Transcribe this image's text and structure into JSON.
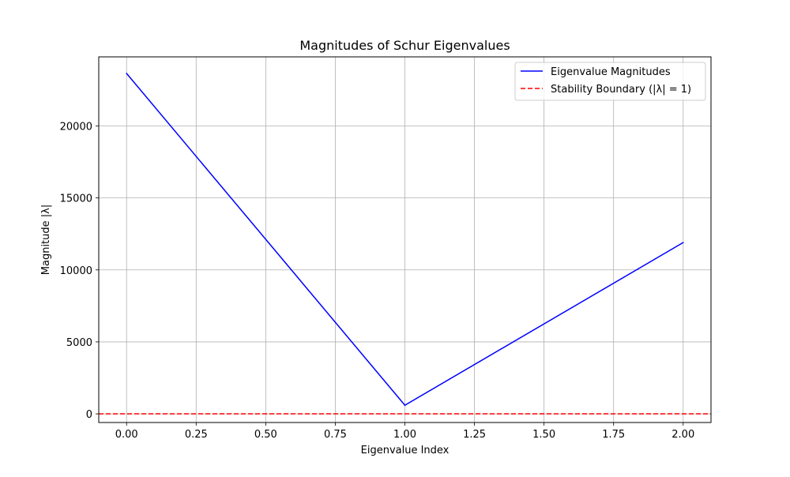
{
  "chart_data": {
    "type": "line",
    "title": "Magnitudes of Schur Eigenvalues",
    "xlabel": "Eigenvalue Index",
    "ylabel": "Magnitude |λ|",
    "xlim": [
      -0.1,
      2.1
    ],
    "ylim": [
      -600,
      24800
    ],
    "x_ticks": [
      0,
      0.25,
      0.5,
      0.75,
      1.0,
      1.25,
      1.5,
      1.75,
      2.0
    ],
    "x_tick_labels": [
      "0.00",
      "0.25",
      "0.50",
      "0.75",
      "1.00",
      "1.25",
      "1.50",
      "1.75",
      "2.00"
    ],
    "y_ticks": [
      0,
      5000,
      10000,
      15000,
      20000
    ],
    "y_tick_labels": [
      "0",
      "5000",
      "10000",
      "15000",
      "20000"
    ],
    "grid": true,
    "legend_position": "top-right",
    "series": [
      {
        "name": "Eigenvalue Magnitudes",
        "x": [
          0,
          1,
          2
        ],
        "values": [
          23650,
          600,
          11900
        ],
        "color": "#0000ff",
        "style": "solid"
      }
    ],
    "reference_lines": [
      {
        "name": "Stability Boundary (|λ| = 1)",
        "y": 1,
        "color": "#ff0000",
        "style": "dashed"
      }
    ]
  }
}
